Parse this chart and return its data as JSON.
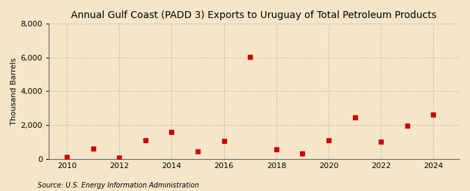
{
  "title": "Annual Gulf Coast (PADD 3) Exports to Uruguay of Total Petroleum Products",
  "ylabel": "Thousand Barrels",
  "source": "Source: U.S. Energy Information Administration",
  "background_color": "#f5e6c8",
  "years": [
    2010,
    2011,
    2012,
    2013,
    2014,
    2015,
    2016,
    2017,
    2018,
    2019,
    2020,
    2021,
    2022,
    2023,
    2024
  ],
  "values": [
    100,
    600,
    50,
    1100,
    1600,
    450,
    1050,
    6050,
    550,
    300,
    1100,
    2450,
    1000,
    1950,
    2600
  ],
  "marker_color": "#cc0000",
  "marker": "s",
  "marker_size": 4,
  "ylim": [
    0,
    8000
  ],
  "yticks": [
    0,
    2000,
    4000,
    6000,
    8000
  ],
  "xticks": [
    2010,
    2012,
    2014,
    2016,
    2018,
    2020,
    2022,
    2024
  ],
  "xlim_left": 2009.3,
  "xlim_right": 2025.0,
  "grid_color": "#bbbbbb",
  "title_fontsize": 10,
  "axis_label_fontsize": 8,
  "tick_fontsize": 8,
  "source_fontsize": 7
}
